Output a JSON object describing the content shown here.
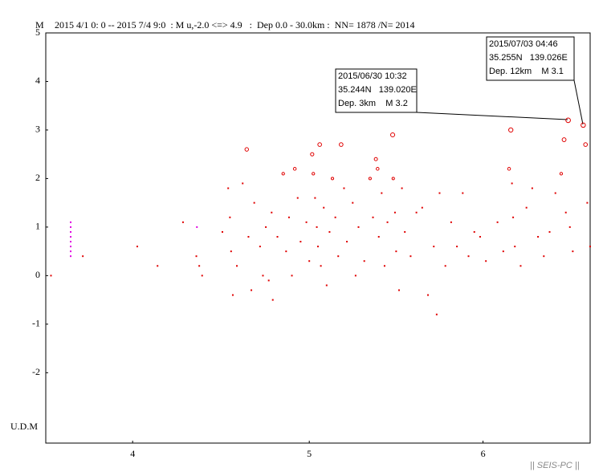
{
  "chart_data": {
    "type": "scatter",
    "title": "2015 4/1 0: 0 -- 2015 7/4 9:0  : M u,-2.0 <=> 4.9   :  Dep 0.0 - 30.0km :  NN= 1878 /N= 2014",
    "y_label": "M",
    "depth_label": "U.D.M",
    "footer": "|| SEIS-PC ||",
    "xlim": [
      0,
      94
    ],
    "ylim": [
      -3.45,
      5
    ],
    "xticks": [
      {
        "value": 15,
        "label": "4"
      },
      {
        "value": 45.5,
        "label": "5"
      },
      {
        "value": 75.5,
        "label": "6"
      }
    ],
    "yticks": [
      -2,
      -1,
      0,
      1,
      2,
      3,
      4,
      5
    ],
    "series": [
      {
        "color": "#e000e0",
        "x": [
          4.3,
          4.3,
          4.3,
          4.3,
          4.3,
          4.3,
          4.3,
          4.3,
          26.1
        ],
        "values": [
          1.1,
          1.0,
          0.9,
          0.8,
          0.7,
          0.6,
          0.5,
          0.4,
          1.0
        ]
      },
      {
        "color": "#e00000",
        "x": [
          0.9,
          6.4,
          15.8,
          19.3,
          23.7,
          26,
          26.5,
          27,
          30.5,
          31.5,
          31.8,
          32,
          32.3,
          33,
          34,
          34.7,
          35,
          35.5,
          36,
          37,
          37.5,
          38,
          38.5,
          39,
          39.2,
          40,
          41,
          41.5,
          42,
          42.5,
          43,
          43.5,
          44,
          45,
          45.5,
          46,
          46.2,
          46.5,
          46.8,
          47,
          47.3,
          47.5,
          48,
          48.5,
          49,
          49.5,
          50,
          50.5,
          51,
          51.5,
          52,
          53,
          53.5,
          54,
          55,
          56,
          56.5,
          57,
          57.3,
          57.5,
          58,
          58.5,
          59,
          59.9,
          60,
          60.3,
          60.5,
          61,
          61.5,
          62,
          63,
          64,
          65,
          66,
          67,
          67.5,
          68,
          69,
          70,
          71,
          72,
          73,
          74,
          75,
          76,
          78,
          79,
          80,
          80.3,
          80.5,
          80.7,
          81,
          82,
          83,
          84,
          85,
          86,
          87,
          88,
          89,
          89.5,
          89.8,
          90.2,
          90.5,
          91,
          92.8,
          93.2,
          93.5,
          94
        ],
        "values": [
          0,
          0.4,
          0.6,
          0.2,
          1.1,
          0.4,
          0.2,
          0,
          0.9,
          1.8,
          1.2,
          0.5,
          -0.4,
          0.2,
          1.9,
          2.6,
          0.8,
          -0.3,
          1.5,
          0.6,
          0,
          1.0,
          -0.1,
          1.3,
          -0.5,
          0.8,
          2.1,
          0.5,
          1.2,
          0,
          2.2,
          1.6,
          0.7,
          1.1,
          0.3,
          2.5,
          2.1,
          1.6,
          1.0,
          0.6,
          2.7,
          0.2,
          1.4,
          -0.2,
          0.9,
          2.0,
          1.2,
          0.4,
          2.7,
          1.8,
          0.7,
          1.5,
          0,
          1.0,
          0.3,
          2.0,
          1.2,
          2.4,
          2.2,
          0.8,
          1.7,
          0.2,
          1.1,
          2.9,
          2.0,
          1.3,
          0.5,
          -0.3,
          1.8,
          0.9,
          0.4,
          1.3,
          1.4,
          -0.4,
          0.6,
          -0.8,
          1.7,
          0.2,
          1.1,
          0.6,
          1.7,
          0.4,
          0.9,
          0.8,
          0.3,
          1.1,
          0.5,
          2.2,
          3.0,
          1.9,
          1.2,
          0.6,
          0.2,
          1.4,
          1.8,
          0.8,
          0.4,
          0.9,
          1.7,
          2.1,
          2.8,
          1.3,
          3.2,
          1.0,
          0.5,
          3.1,
          2.7,
          1.5,
          0.6
        ]
      }
    ],
    "annotations": [
      {
        "lines": [
          "2015/06/30 10:32",
          "35.244N   139.020E",
          "Dep. 3km    M 3.2"
        ]
      },
      {
        "lines": [
          "2015/07/03 04:46",
          "35.255N   139.026E",
          "Dep. 12km    M 3.1"
        ]
      }
    ]
  }
}
